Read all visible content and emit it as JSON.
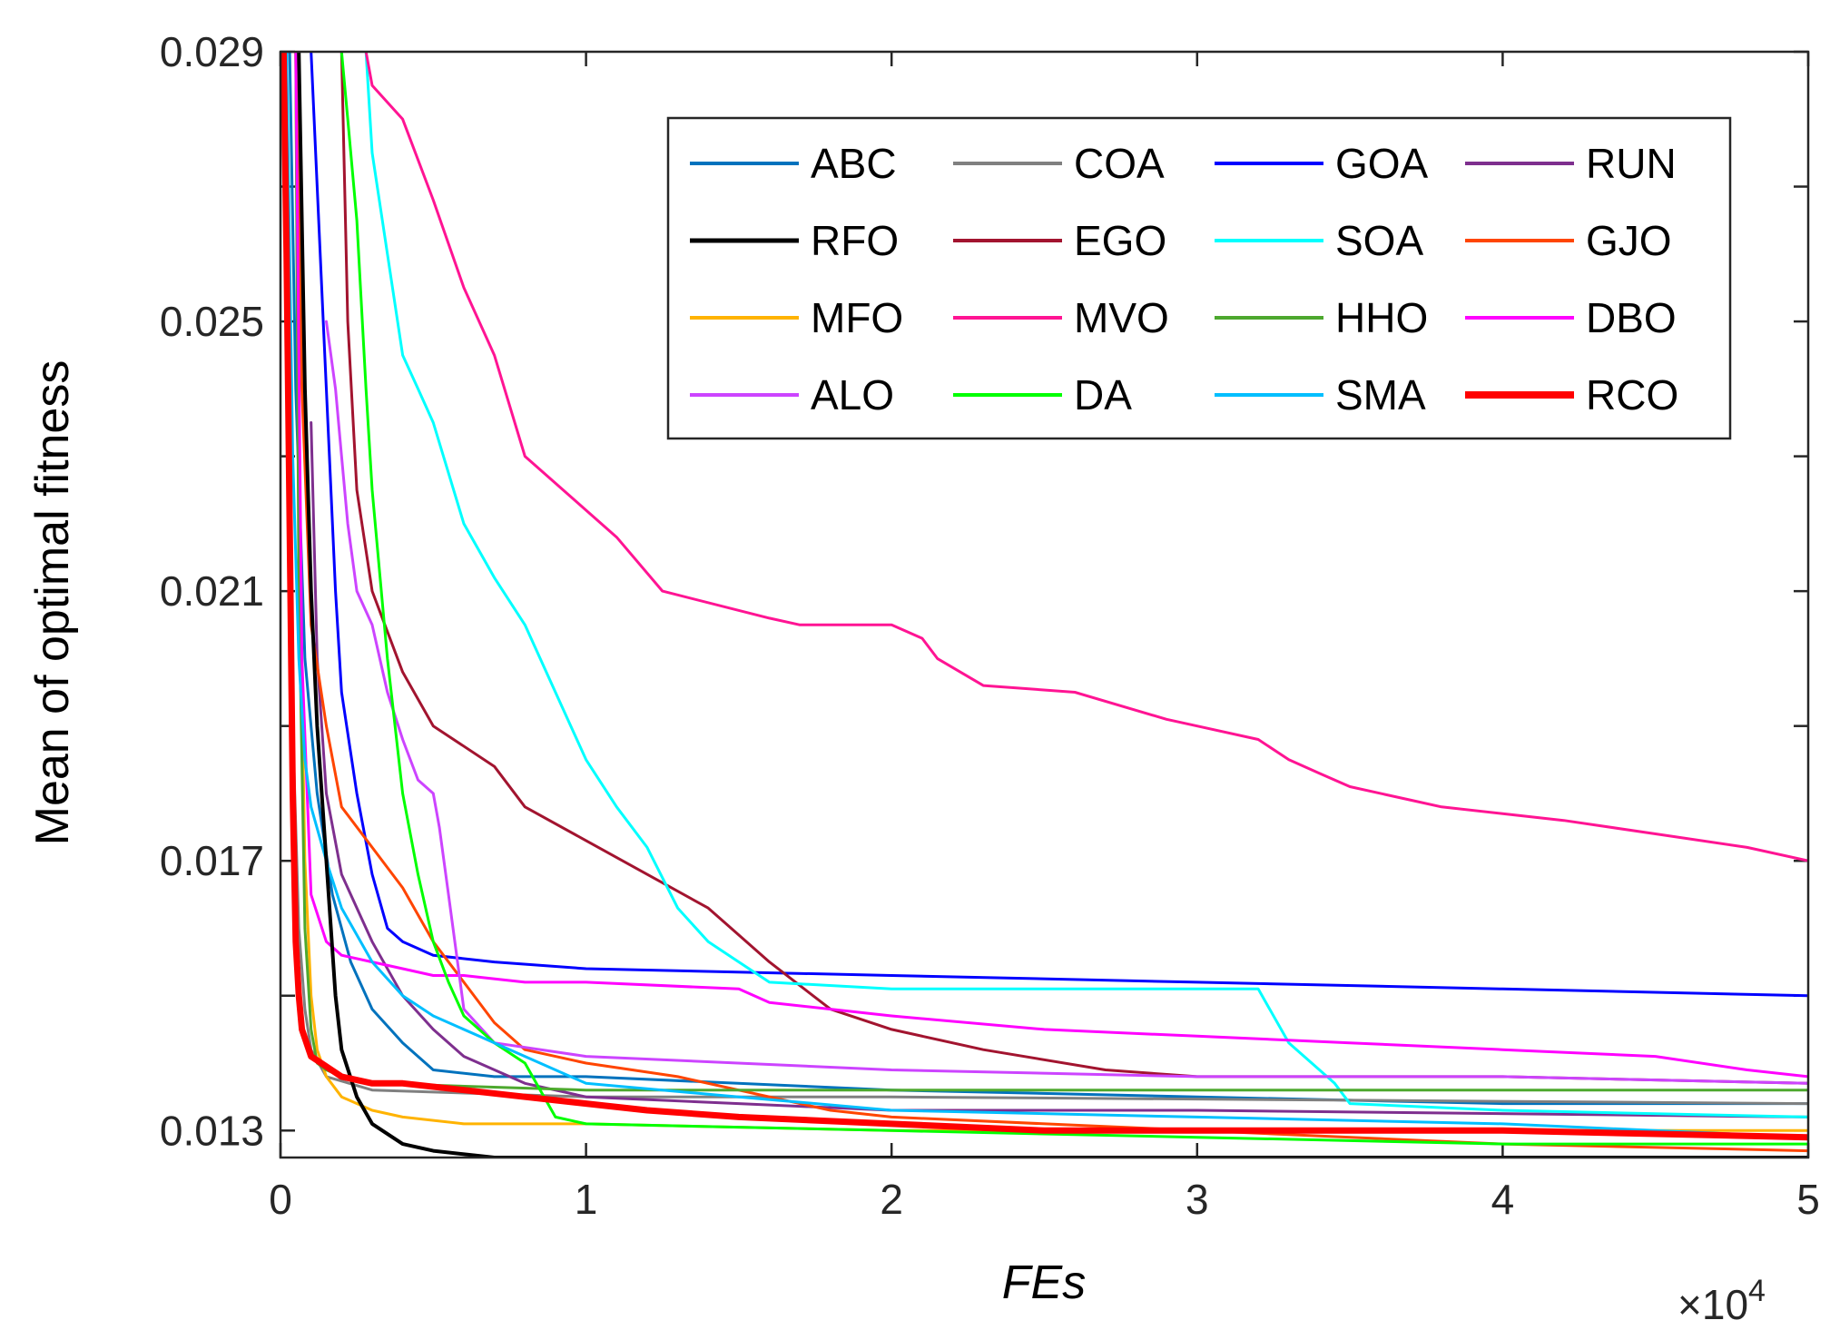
{
  "chart_data": {
    "type": "line",
    "title": "",
    "xlabel": "FEs",
    "ylabel": "Mean of optimal fitness",
    "x_multiplier_label": "×10",
    "x_multiplier_exponent": "4",
    "xlim": [
      0,
      5
    ],
    "ylim": [
      0.0126,
      0.029
    ],
    "xticks": [
      {
        "value": 0,
        "label": "0"
      },
      {
        "value": 1,
        "label": "1"
      },
      {
        "value": 2,
        "label": "2"
      },
      {
        "value": 3,
        "label": "3"
      },
      {
        "value": 4,
        "label": "4"
      },
      {
        "value": 5,
        "label": "5"
      }
    ],
    "yticks": [
      {
        "value": 0.013,
        "label": "0.013"
      },
      {
        "value": 0.017,
        "label": "0.017"
      },
      {
        "value": 0.021,
        "label": "0.021"
      },
      {
        "value": 0.025,
        "label": "0.025"
      },
      {
        "value": 0.029,
        "label": "0.029"
      }
    ],
    "yminor": [
      0.015,
      0.019,
      0.023,
      0.027
    ],
    "grid": false,
    "legend_position": "top-right",
    "legend_columns": 4,
    "series": [
      {
        "name": "ABC",
        "color": "#0072BD",
        "width": 3,
        "x": [
          0.03,
          0.05,
          0.08,
          0.12,
          0.17,
          0.23,
          0.3,
          0.4,
          0.5,
          0.7,
          1.0,
          2.0,
          3.0,
          4.0,
          5.0
        ],
        "y": [
          0.029,
          0.024,
          0.02,
          0.018,
          0.0165,
          0.0155,
          0.0148,
          0.0143,
          0.0139,
          0.0138,
          0.0138,
          0.0136,
          0.0135,
          0.0134,
          0.0134
        ]
      },
      {
        "name": "COA",
        "color": "#808080",
        "width": 3,
        "x": [
          0.02,
          0.03,
          0.04,
          0.06,
          0.08,
          0.1,
          0.15,
          0.3,
          1.0,
          2.0,
          5.0
        ],
        "y": [
          0.029,
          0.024,
          0.019,
          0.016,
          0.0148,
          0.0142,
          0.0138,
          0.0136,
          0.0135,
          0.0135,
          0.0134
        ]
      },
      {
        "name": "GOA",
        "color": "#0000FF",
        "width": 3,
        "x": [
          0.1,
          0.12,
          0.14,
          0.16,
          0.18,
          0.2,
          0.25,
          0.3,
          0.35,
          0.4,
          0.5,
          0.7,
          1.0,
          2.0,
          3.0,
          4.0,
          5.0
        ],
        "y": [
          0.029,
          0.027,
          0.025,
          0.023,
          0.021,
          0.0195,
          0.018,
          0.0168,
          0.016,
          0.0158,
          0.0156,
          0.0155,
          0.0154,
          0.0153,
          0.0152,
          0.0151,
          0.015
        ]
      },
      {
        "name": "RUN",
        "color": "#7E2F8E",
        "width": 3,
        "x": [
          0.1,
          0.12,
          0.15,
          0.2,
          0.3,
          0.4,
          0.5,
          0.6,
          0.8,
          1.0,
          1.5,
          2.0,
          3.0,
          5.0
        ],
        "y": [
          0.0235,
          0.02,
          0.018,
          0.0168,
          0.0158,
          0.015,
          0.0145,
          0.0141,
          0.0137,
          0.0135,
          0.0134,
          0.0133,
          0.0133,
          0.0132
        ]
      },
      {
        "name": "RFO",
        "color": "#000000",
        "width": 4,
        "x": [
          0.06,
          0.08,
          0.1,
          0.12,
          0.15,
          0.18,
          0.2,
          0.25,
          0.3,
          0.4,
          0.5,
          0.7,
          1.0,
          5.0
        ],
        "y": [
          0.029,
          0.024,
          0.021,
          0.019,
          0.017,
          0.015,
          0.0142,
          0.0135,
          0.0131,
          0.0128,
          0.0127,
          0.0126,
          0.0126,
          0.0126
        ]
      },
      {
        "name": "EGO",
        "color": "#A2142F",
        "width": 3,
        "x": [
          0.2,
          0.22,
          0.25,
          0.3,
          0.4,
          0.5,
          0.7,
          0.8,
          1.0,
          1.2,
          1.4,
          1.6,
          1.8,
          2.0,
          2.3,
          2.7,
          3.0,
          4.0,
          5.0
        ],
        "y": [
          0.029,
          0.025,
          0.0225,
          0.021,
          0.0198,
          0.019,
          0.0184,
          0.0178,
          0.0173,
          0.0168,
          0.0163,
          0.0155,
          0.0148,
          0.0145,
          0.0142,
          0.0139,
          0.0138,
          0.0138,
          0.0137
        ]
      },
      {
        "name": "SOA",
        "color": "#00FFFF",
        "width": 3,
        "x": [
          0.28,
          0.3,
          0.35,
          0.4,
          0.45,
          0.5,
          0.6,
          0.7,
          0.8,
          0.9,
          1.0,
          1.1,
          1.2,
          1.3,
          1.4,
          1.5,
          1.6,
          2.0,
          3.0,
          3.2,
          3.3,
          3.45,
          3.5,
          4.0,
          5.0
        ],
        "y": [
          0.029,
          0.0275,
          0.026,
          0.0245,
          0.024,
          0.0235,
          0.022,
          0.0212,
          0.0205,
          0.0195,
          0.0185,
          0.0178,
          0.0172,
          0.0163,
          0.0158,
          0.0155,
          0.0152,
          0.0151,
          0.0151,
          0.0151,
          0.0143,
          0.0137,
          0.0134,
          0.0133,
          0.0132
        ]
      },
      {
        "name": "GJO",
        "color": "#FF4500",
        "width": 3,
        "x": [
          0.05,
          0.07,
          0.1,
          0.15,
          0.2,
          0.3,
          0.4,
          0.5,
          0.6,
          0.7,
          0.8,
          1.0,
          1.3,
          1.6,
          1.8,
          2.0,
          3.0,
          4.0,
          5.0
        ],
        "y": [
          0.029,
          0.024,
          0.0205,
          0.019,
          0.0178,
          0.0172,
          0.0166,
          0.0158,
          0.0152,
          0.0146,
          0.0142,
          0.014,
          0.0138,
          0.0135,
          0.0133,
          0.0132,
          0.013,
          0.0128,
          0.0127
        ]
      },
      {
        "name": "MFO",
        "color": "#FFB300",
        "width": 3,
        "x": [
          0.05,
          0.06,
          0.08,
          0.1,
          0.12,
          0.15,
          0.2,
          0.3,
          0.4,
          0.6,
          1.0,
          2.0,
          5.0
        ],
        "y": [
          0.029,
          0.022,
          0.017,
          0.015,
          0.0142,
          0.0138,
          0.0135,
          0.0133,
          0.0132,
          0.0131,
          0.0131,
          0.013,
          0.013
        ]
      },
      {
        "name": "MVO",
        "color": "#FF1493",
        "width": 3,
        "x": [
          0.28,
          0.3,
          0.4,
          0.5,
          0.6,
          0.7,
          0.8,
          1.0,
          1.1,
          1.25,
          1.6,
          1.7,
          2.0,
          2.1,
          2.15,
          2.3,
          2.6,
          2.9,
          3.0,
          3.2,
          3.3,
          3.4,
          3.5,
          3.7,
          3.8,
          4.0,
          4.2,
          4.5,
          4.8,
          5.0
        ],
        "y": [
          0.029,
          0.0285,
          0.028,
          0.0268,
          0.0255,
          0.0245,
          0.023,
          0.0222,
          0.0218,
          0.021,
          0.0206,
          0.0205,
          0.0205,
          0.0203,
          0.02,
          0.0196,
          0.0195,
          0.0191,
          0.019,
          0.0188,
          0.0185,
          0.0183,
          0.0181,
          0.0179,
          0.0178,
          0.0177,
          0.0176,
          0.0174,
          0.0172,
          0.017
        ]
      },
      {
        "name": "HHO",
        "color": "#4DA82E",
        "width": 3,
        "x": [
          0.05,
          0.06,
          0.08,
          0.1,
          0.12,
          0.15,
          0.2,
          0.3,
          1.0,
          2.0,
          3.0,
          5.0
        ],
        "y": [
          0.029,
          0.021,
          0.016,
          0.0145,
          0.014,
          0.0139,
          0.0138,
          0.0137,
          0.0136,
          0.0136,
          0.0136,
          0.0136
        ]
      },
      {
        "name": "DBO",
        "color": "#FF00FF",
        "width": 3,
        "x": [
          0.05,
          0.07,
          0.1,
          0.15,
          0.2,
          0.3,
          0.4,
          0.5,
          0.6,
          0.8,
          1.0,
          1.5,
          1.6,
          2.0,
          2.5,
          3.0,
          3.5,
          4.0,
          4.5,
          4.8,
          5.0
        ],
        "y": [
          0.029,
          0.02,
          0.0165,
          0.0158,
          0.0156,
          0.0155,
          0.0154,
          0.0153,
          0.0153,
          0.0152,
          0.0152,
          0.0151,
          0.0149,
          0.0147,
          0.0145,
          0.0144,
          0.0143,
          0.0142,
          0.0141,
          0.0139,
          0.0138
        ]
      },
      {
        "name": "ALO",
        "color": "#CC44FF",
        "width": 3,
        "x": [
          0.15,
          0.18,
          0.2,
          0.22,
          0.25,
          0.3,
          0.35,
          0.4,
          0.45,
          0.5,
          0.52,
          0.55,
          0.6,
          0.7,
          1.0,
          2.0,
          3.0,
          4.0,
          5.0
        ],
        "y": [
          0.025,
          0.024,
          0.023,
          0.022,
          0.021,
          0.0205,
          0.0195,
          0.0188,
          0.0182,
          0.018,
          0.0175,
          0.0165,
          0.0148,
          0.0143,
          0.0141,
          0.0139,
          0.0138,
          0.0138,
          0.0137
        ]
      },
      {
        "name": "DA",
        "color": "#00FF00",
        "width": 3,
        "x": [
          0.2,
          0.22,
          0.25,
          0.28,
          0.3,
          0.35,
          0.4,
          0.45,
          0.5,
          0.55,
          0.6,
          0.7,
          0.8,
          0.9,
          1.0,
          2.0,
          3.0,
          4.0,
          5.0
        ],
        "y": [
          0.029,
          0.028,
          0.0265,
          0.024,
          0.0225,
          0.02,
          0.018,
          0.0168,
          0.0158,
          0.0152,
          0.0147,
          0.0143,
          0.014,
          0.0132,
          0.0131,
          0.013,
          0.0129,
          0.0128,
          0.0128
        ]
      },
      {
        "name": "SMA",
        "color": "#00BFFF",
        "width": 3,
        "x": [
          0.02,
          0.04,
          0.06,
          0.08,
          0.1,
          0.15,
          0.2,
          0.3,
          0.4,
          0.5,
          0.7,
          0.9,
          1.0,
          1.5,
          2.0,
          3.0,
          4.0,
          5.0
        ],
        "y": [
          0.029,
          0.023,
          0.02,
          0.0185,
          0.0178,
          0.017,
          0.0163,
          0.0155,
          0.015,
          0.0147,
          0.0143,
          0.0139,
          0.0137,
          0.0135,
          0.0133,
          0.0132,
          0.0131,
          0.0129
        ]
      },
      {
        "name": "RCO",
        "color": "#FF0000",
        "width": 7,
        "x": [
          0.01,
          0.02,
          0.03,
          0.04,
          0.05,
          0.06,
          0.07,
          0.1,
          0.2,
          0.3,
          0.4,
          0.6,
          0.8,
          1.0,
          1.2,
          1.5,
          2.0,
          2.5,
          3.0,
          4.0,
          5.0
        ],
        "y": [
          0.029,
          0.026,
          0.022,
          0.018,
          0.0158,
          0.015,
          0.0145,
          0.0141,
          0.0138,
          0.0137,
          0.0137,
          0.0136,
          0.0135,
          0.0134,
          0.0133,
          0.0132,
          0.0131,
          0.013,
          0.013,
          0.013,
          0.0129
        ]
      }
    ]
  }
}
